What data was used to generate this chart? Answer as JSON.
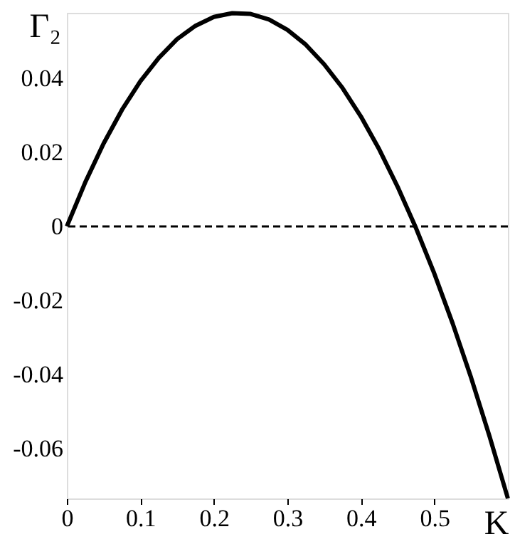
{
  "chart_data": {
    "type": "line",
    "xlabel": "K",
    "ylabel": "Γ₂",
    "x": [
      0,
      0.025,
      0.05,
      0.075,
      0.1,
      0.125,
      0.15,
      0.175,
      0.2,
      0.225,
      0.25,
      0.275,
      0.3,
      0.325,
      0.35,
      0.375,
      0.4,
      0.425,
      0.45,
      0.474,
      0.5,
      0.525,
      0.55,
      0.575,
      0.6
    ],
    "series": [
      {
        "color": "#000000",
        "values": [
          0,
          0.0119,
          0.0224,
          0.0315,
          0.0392,
          0.0455,
          0.0506,
          0.0542,
          0.0566,
          0.0576,
          0.0574,
          0.0559,
          0.0531,
          0.0491,
          0.0438,
          0.0374,
          0.0297,
          0.0208,
          0.0107,
          0,
          -0.0128,
          -0.0263,
          -0.0409,
          -0.0567,
          -0.0735
        ]
      }
    ],
    "xlim": [
      0,
      0.6
    ],
    "ylim": [
      -0.0735,
      0.0577
    ],
    "xticks": [
      0,
      0.1,
      0.2,
      0.3,
      0.4,
      0.5
    ],
    "yticks": [
      -0.06,
      -0.04,
      -0.02,
      0,
      0.02,
      0.04
    ],
    "ref_lines": [
      {
        "axis": "y",
        "value": 0,
        "line_style": "dashed",
        "color": "#000000"
      }
    ],
    "grid": false,
    "marker": "none",
    "line_style": "solid"
  }
}
